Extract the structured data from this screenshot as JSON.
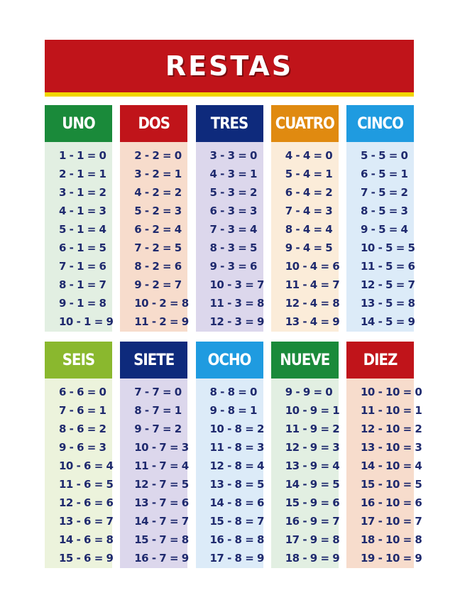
{
  "title": "RESTAS",
  "columns": [
    {
      "name": "UNO",
      "head_color": "#1a8a3a",
      "body_color": "#e2efe2",
      "equations": [
        "1 - 1 = 0",
        "2 - 1 = 1",
        "3 - 1 = 2",
        "4 - 1 = 3",
        "5 - 1 = 4",
        "6 - 1 = 5",
        "7 - 1 = 6",
        "8 - 1 = 7",
        "9 - 1 = 8",
        "10 - 1 = 9"
      ]
    },
    {
      "name": "DOS",
      "head_color": "#c0141a",
      "body_color": "#f7dccc",
      "equations": [
        "2 - 2 = 0",
        "3 - 2 = 1",
        "4 - 2 = 2",
        "5 - 2 = 3",
        "6 - 2 = 4",
        "7 - 2 = 5",
        "8 - 2 = 6",
        "9 - 2 = 7",
        "10 - 2 = 8",
        "11 - 2 = 9"
      ]
    },
    {
      "name": "TRES",
      "head_color": "#0e2a7c",
      "body_color": "#dcd7ec",
      "equations": [
        "3 - 3 = 0",
        "4 - 3 = 1",
        "5 - 3 = 2",
        "6 - 3 = 3",
        "7 - 3 = 4",
        "8 - 3 = 5",
        "9 - 3 = 6",
        "10 - 3 = 7",
        "11 - 3 = 8",
        "12 - 3 = 9"
      ]
    },
    {
      "name": "CUATRO",
      "head_color": "#e08a10",
      "body_color": "#fbecd9",
      "equations": [
        "4 - 4 = 0",
        "5 - 4 = 1",
        "6 - 4 = 2",
        "7 - 4 = 3",
        "8 - 4 = 4",
        "9 - 4 = 5",
        "10 - 4 = 6",
        "11 - 4 = 7",
        "12 - 4 = 8",
        "13 - 4 = 9"
      ]
    },
    {
      "name": "CINCO",
      "head_color": "#1f9be0",
      "body_color": "#dcebf8",
      "equations": [
        "5 - 5 = 0",
        "6 - 5 = 1",
        "7 - 5 = 2",
        "8 - 5 = 3",
        "9 - 5 = 4",
        "10 - 5 = 5",
        "11 - 5 = 6",
        "12 - 5 = 7",
        "13 - 5 = 8",
        "14 - 5 = 9"
      ]
    },
    {
      "name": "SEIS",
      "head_color": "#8ab82e",
      "body_color": "#ecf3dc",
      "equations": [
        "6 - 6 = 0",
        "7 - 6 = 1",
        "8 - 6 = 2",
        "9 - 6 = 3",
        "10 - 6 = 4",
        "11 - 6 = 5",
        "12 - 6 = 6",
        "13 - 6 = 7",
        "14 - 6 = 8",
        "15 - 6 = 9"
      ]
    },
    {
      "name": "SIETE",
      "head_color": "#0e2a7c",
      "body_color": "#dcd7ec",
      "equations": [
        "7 - 7 = 0",
        "8 - 7 = 1",
        "9 - 7 = 2",
        "10 - 7 = 3",
        "11 - 7 = 4",
        "12 - 7 = 5",
        "13 - 7 = 6",
        "14 - 7 = 7",
        "15 - 7 = 8",
        "16 - 7 = 9"
      ]
    },
    {
      "name": "OCHO",
      "head_color": "#1f9be0",
      "body_color": "#dcebf8",
      "equations": [
        "8 - 8 = 0",
        "9 - 8 = 1",
        "10 - 8 = 2",
        "11 - 8 = 3",
        "12 - 8 = 4",
        "13 - 8 = 5",
        "14 - 8 = 6",
        "15 - 8 = 7",
        "16 - 8 = 8",
        "17 - 8 = 9"
      ]
    },
    {
      "name": "NUEVE",
      "head_color": "#1a8a3a",
      "body_color": "#e2efe2",
      "equations": [
        "9 - 9 = 0",
        "10 - 9 = 1",
        "11 - 9 = 2",
        "12 - 9 = 3",
        "13 - 9 = 4",
        "14 - 9 = 5",
        "15 - 9 = 6",
        "16 - 9 = 7",
        "17 - 9 = 8",
        "18 - 9 = 9"
      ]
    },
    {
      "name": "DIEZ",
      "head_color": "#c0141a",
      "body_color": "#f7dccc",
      "equations": [
        "10 - 10 = 0",
        "11 - 10 = 1",
        "12 - 10 = 2",
        "13 - 10 = 3",
        "14 - 10 = 4",
        "15 - 10 = 5",
        "16 - 10 = 6",
        "17 - 10 = 7",
        "18 - 10 = 8",
        "19 - 10 = 9"
      ]
    }
  ]
}
